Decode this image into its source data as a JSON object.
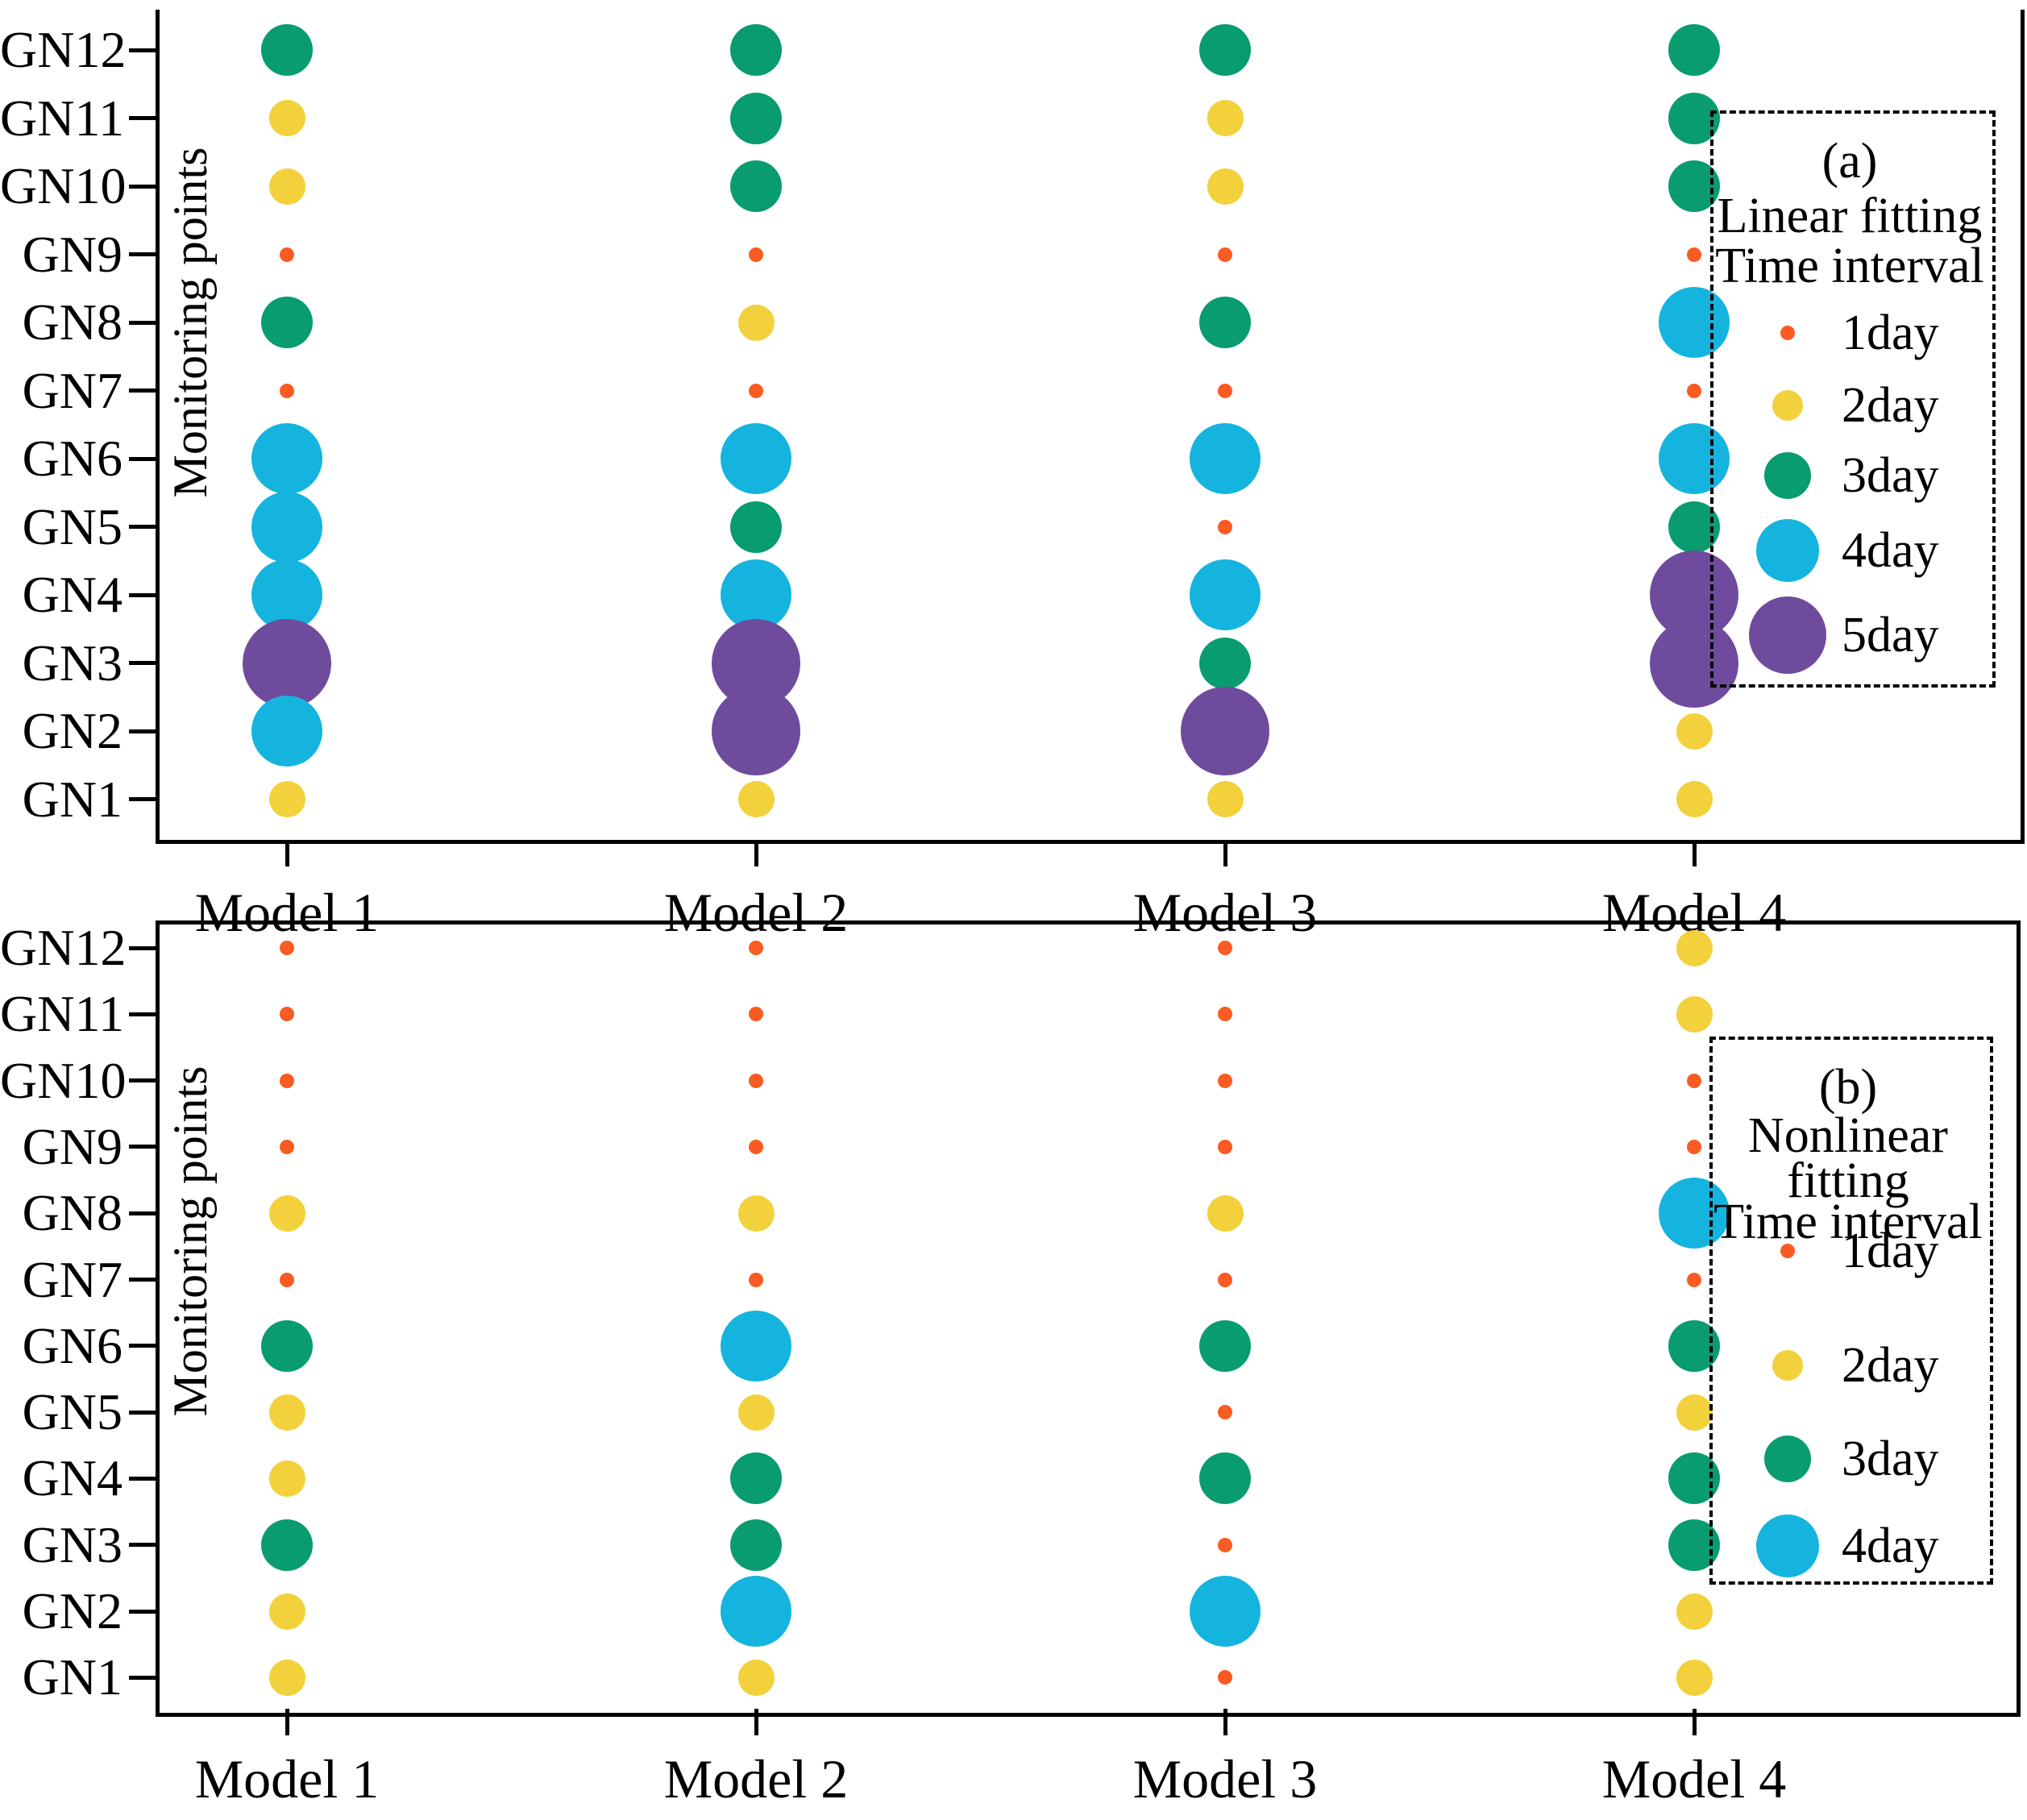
{
  "page": {
    "background": "#ffffff"
  },
  "day_colors": {
    "1": "#FA5B22",
    "2": "#F2D13C",
    "3": "#089C70",
    "4": "#15B4DF",
    "5": "#6F4B9E"
  },
  "chart_data": [
    {
      "type": "scatter",
      "panel_tag": "(a)",
      "title_lines": [
        "(a)",
        "Linear fitting",
        "Time interval"
      ],
      "ylabel": "Monitoring points",
      "value_unit": "day",
      "categories": [
        "GN1",
        "GN2",
        "GN3",
        "GN4",
        "GN5",
        "GN6",
        "GN7",
        "GN8",
        "GN9",
        "GN10",
        "GN11",
        "GN12"
      ],
      "x_categories": [
        "Model 1",
        "Model 2",
        "Model 3",
        "Model 4"
      ],
      "series": [
        {
          "name": "Model 1",
          "values_day": [
            2,
            4,
            5,
            4,
            4,
            4,
            1,
            3,
            1,
            2,
            2,
            3
          ]
        },
        {
          "name": "Model 2",
          "values_day": [
            2,
            5,
            5,
            4,
            3,
            4,
            1,
            2,
            1,
            3,
            3,
            3
          ]
        },
        {
          "name": "Model 3",
          "values_day": [
            2,
            5,
            3,
            4,
            1,
            4,
            1,
            3,
            1,
            2,
            2,
            3
          ]
        },
        {
          "name": "Model 4",
          "values_day": [
            2,
            2,
            5,
            5,
            3,
            4,
            1,
            4,
            1,
            3,
            3,
            3
          ]
        }
      ],
      "legend_entries": [
        {
          "label": "1day",
          "day": 1
        },
        {
          "label": "2day",
          "day": 2
        },
        {
          "label": "3day",
          "day": 3
        },
        {
          "label": "4day",
          "day": 4
        },
        {
          "label": "5day",
          "day": 5
        }
      ]
    },
    {
      "type": "scatter",
      "panel_tag": "(b)",
      "title_lines": [
        "(b)",
        "Nonlinear",
        "fitting",
        "Time interval"
      ],
      "ylabel": "Monitoring points",
      "value_unit": "day",
      "categories": [
        "GN1",
        "GN2",
        "GN3",
        "GN4",
        "GN5",
        "GN6",
        "GN7",
        "GN8",
        "GN9",
        "GN10",
        "GN11",
        "GN12"
      ],
      "x_categories": [
        "Model 1",
        "Model 2",
        "Model 3",
        "Model 4"
      ],
      "series": [
        {
          "name": "Model 1",
          "values_day": [
            2,
            2,
            3,
            2,
            2,
            3,
            1,
            2,
            1,
            1,
            1,
            1
          ]
        },
        {
          "name": "Model 2",
          "values_day": [
            2,
            4,
            3,
            3,
            2,
            4,
            1,
            2,
            1,
            1,
            1,
            1
          ]
        },
        {
          "name": "Model 3",
          "values_day": [
            1,
            4,
            1,
            3,
            1,
            3,
            1,
            2,
            1,
            1,
            1,
            1
          ]
        },
        {
          "name": "Model 4",
          "values_day": [
            2,
            2,
            3,
            3,
            2,
            3,
            1,
            4,
            1,
            1,
            2,
            2
          ]
        }
      ],
      "legend_entries": [
        {
          "label": "1day",
          "day": 1
        },
        {
          "label": "2day",
          "day": 2
        },
        {
          "label": "3day",
          "day": 3
        },
        {
          "label": "4day",
          "day": 4
        }
      ]
    }
  ]
}
